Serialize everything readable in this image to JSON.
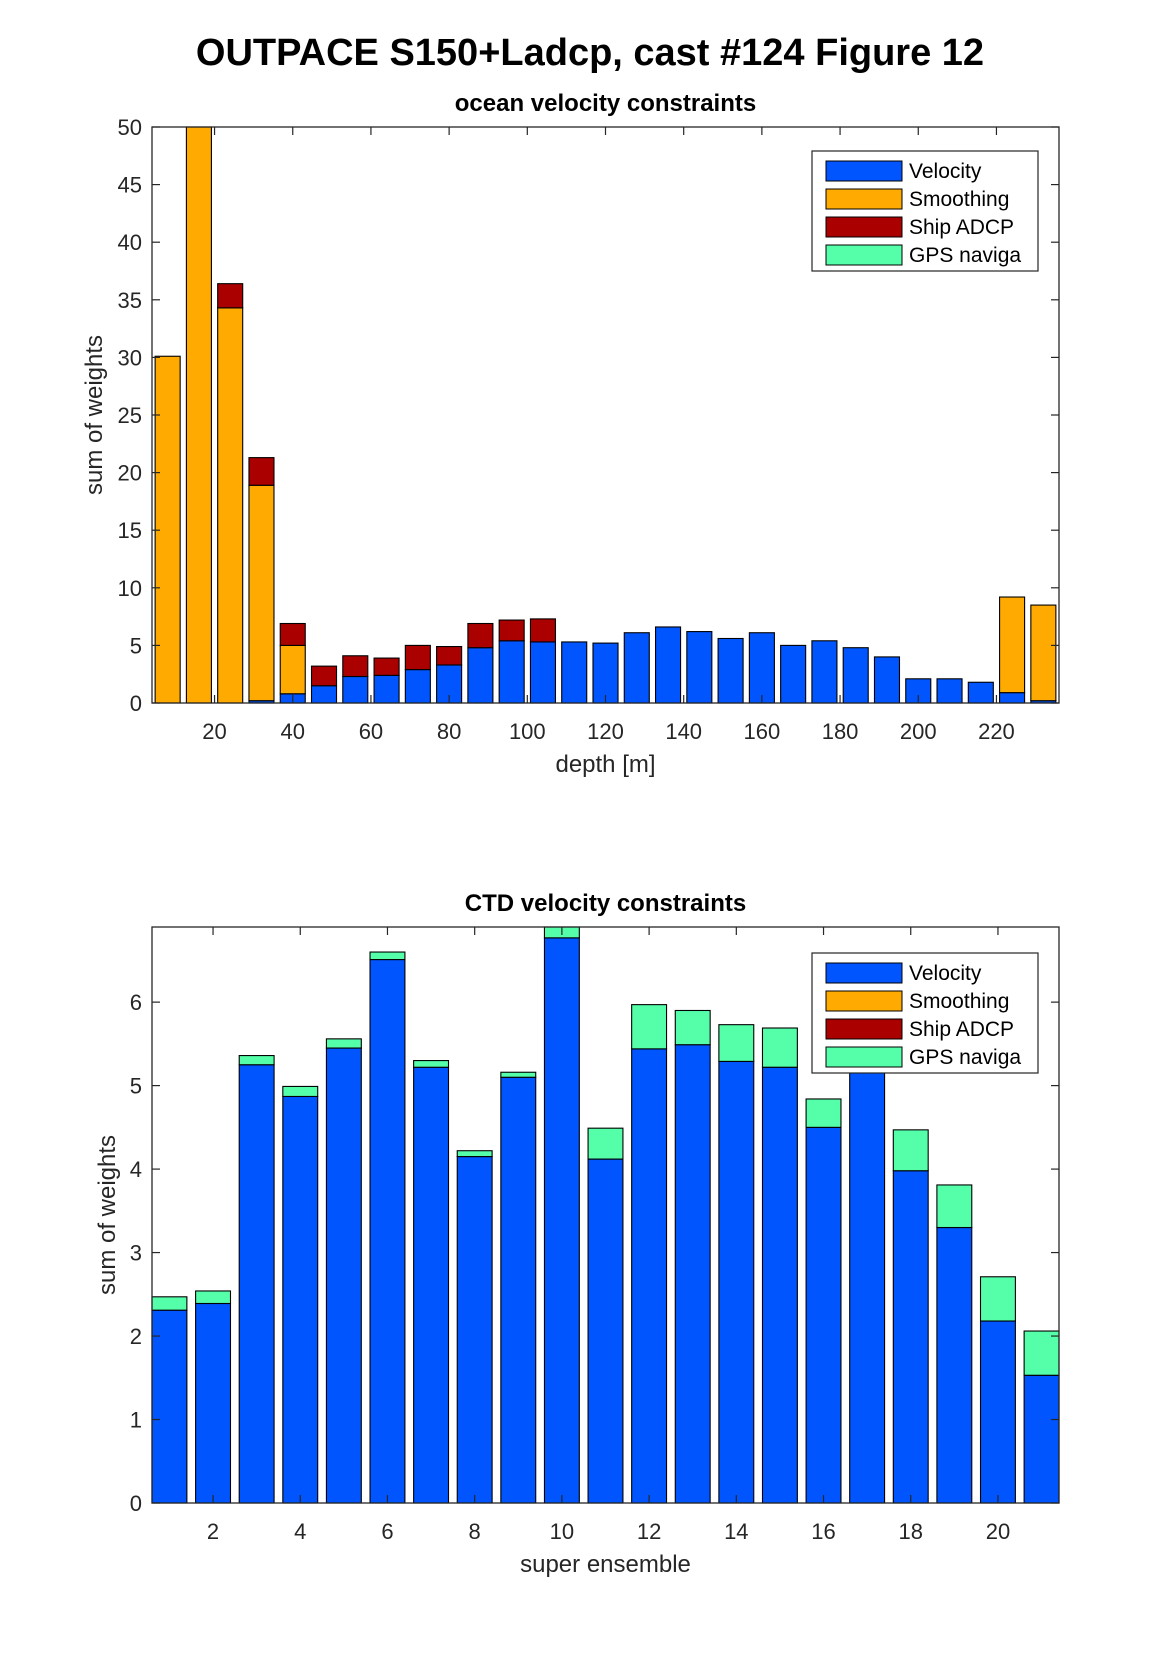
{
  "figure": {
    "title": "OUTPACE S150+Ladcp, cast #124  Figure 12"
  },
  "colors": {
    "Velocity": "#0055ff",
    "Smoothing": "#ffaa00",
    "Ship ADCP": "#aa0000",
    "GPS naviga": "#55ffaa"
  },
  "chart_data": [
    {
      "type": "bar",
      "stacked": true,
      "title": "ocean velocity constraints",
      "xlabel": "depth [m]",
      "ylabel": "sum of weights",
      "xlim": [
        4,
        236
      ],
      "ylim": [
        0,
        50
      ],
      "xticks": [
        20,
        40,
        60,
        80,
        100,
        120,
        140,
        160,
        180,
        200,
        220
      ],
      "yticks": [
        0,
        5,
        10,
        15,
        20,
        25,
        30,
        35,
        40,
        45,
        50
      ],
      "grid": false,
      "legend_position": "top-right",
      "bar_width": 6.4,
      "x": [
        8,
        16,
        24,
        32,
        40,
        48,
        56,
        64,
        72,
        80,
        88,
        96,
        104,
        112,
        120,
        128,
        136,
        144,
        152,
        160,
        168,
        176,
        184,
        192,
        200,
        208,
        216,
        224,
        232
      ],
      "series": [
        {
          "name": "Velocity",
          "values": [
            0,
            0,
            0,
            0.2,
            0.8,
            1.5,
            2.3,
            2.4,
            2.9,
            3.3,
            4.8,
            5.4,
            5.3,
            5.3,
            5.2,
            6.1,
            6.6,
            6.2,
            5.6,
            6.1,
            5.0,
            5.4,
            4.8,
            4.0,
            2.1,
            2.1,
            1.8,
            0.9,
            0.2
          ]
        },
        {
          "name": "Smoothing",
          "values": [
            30.1,
            50.0,
            34.3,
            18.7,
            4.2,
            0,
            0,
            0,
            0,
            0,
            0,
            0,
            0,
            0,
            0,
            0,
            0,
            0,
            0,
            0,
            0,
            0,
            0,
            0,
            0,
            0,
            0,
            8.3,
            8.3
          ]
        },
        {
          "name": "Ship ADCP",
          "values": [
            0,
            0,
            2.1,
            2.4,
            1.9,
            1.7,
            1.8,
            1.5,
            2.1,
            1.6,
            2.1,
            1.8,
            2.0,
            0,
            0,
            0,
            0,
            0,
            0,
            0,
            0,
            0,
            0,
            0,
            0,
            0,
            0,
            0,
            0
          ]
        },
        {
          "name": "GPS naviga",
          "values": [
            0,
            0,
            0,
            0,
            0,
            0,
            0,
            0,
            0,
            0,
            0,
            0,
            0,
            0,
            0,
            0,
            0,
            0,
            0,
            0,
            0,
            0,
            0,
            0,
            0,
            0,
            0,
            0,
            0
          ]
        }
      ]
    },
    {
      "type": "bar",
      "stacked": true,
      "title": "CTD velocity constraints",
      "xlabel": "super ensemble",
      "ylabel": "sum of weights",
      "xlim": [
        0.6,
        21.4
      ],
      "ylim": [
        0,
        6.9
      ],
      "xticks": [
        2,
        4,
        6,
        8,
        10,
        12,
        14,
        16,
        18,
        20
      ],
      "yticks": [
        0,
        1,
        2,
        3,
        4,
        5,
        6
      ],
      "grid": false,
      "legend_position": "top-right",
      "bar_width": 0.8,
      "x": [
        1,
        2,
        3,
        4,
        5,
        6,
        7,
        8,
        9,
        10,
        11,
        12,
        13,
        14,
        15,
        16,
        17,
        18,
        19,
        20,
        21
      ],
      "series": [
        {
          "name": "Velocity",
          "values": [
            2.31,
            2.39,
            5.25,
            4.87,
            5.45,
            6.51,
            5.22,
            4.15,
            5.1,
            6.77,
            4.12,
            5.44,
            5.49,
            5.29,
            5.22,
            4.5,
            5.5,
            3.98,
            3.3,
            2.18,
            1.53
          ]
        },
        {
          "name": "Smoothing",
          "values": [
            0,
            0,
            0,
            0,
            0,
            0,
            0,
            0,
            0,
            0,
            0,
            0,
            0,
            0,
            0,
            0,
            0,
            0,
            0,
            0,
            0
          ]
        },
        {
          "name": "Ship ADCP",
          "values": [
            0,
            0,
            0,
            0,
            0,
            0,
            0,
            0,
            0,
            0,
            0,
            0,
            0,
            0,
            0,
            0,
            0,
            0,
            0,
            0,
            0
          ]
        },
        {
          "name": "GPS naviga",
          "values": [
            0.16,
            0.15,
            0.11,
            0.12,
            0.11,
            0.09,
            0.08,
            0.07,
            0.06,
            0.15,
            0.37,
            0.53,
            0.41,
            0.44,
            0.47,
            0.34,
            0.3,
            0.49,
            0.51,
            0.53,
            0.53
          ]
        }
      ]
    }
  ]
}
